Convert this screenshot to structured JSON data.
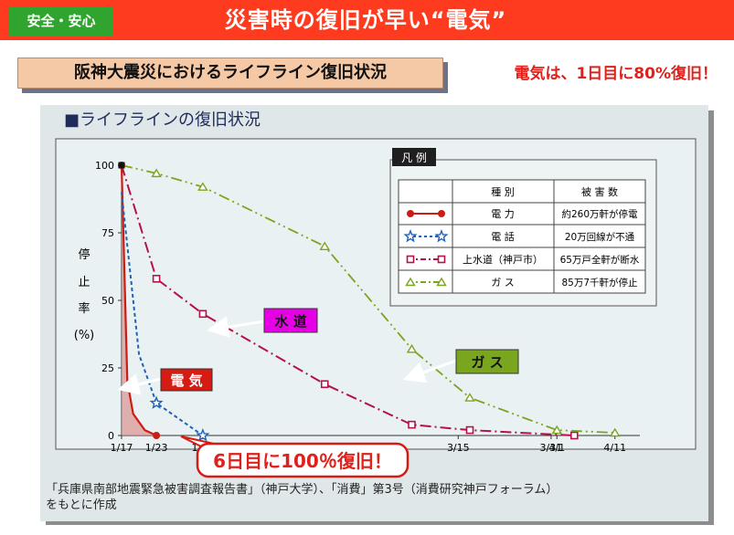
{
  "header": {
    "badge": "安全・安心",
    "title": "災害時の復旧が早い“電気”"
  },
  "subtitle": "阪神大震災におけるライフライン復旧状況",
  "highlight": "電気は、1日目に80%復旧！",
  "colors": {
    "header_bg": "#ff3b1f",
    "badge_bg": "#2fa52f",
    "electricity": "#cc1d14",
    "telephone": "#1f62b8",
    "water": "#b5124a",
    "gas": "#7aa51f"
  },
  "chart_data": {
    "type": "line",
    "title": "■ライフラインの復旧状況",
    "ylabel": [
      "停",
      "止",
      "率",
      "(%)"
    ],
    "ylim": [
      0,
      100
    ],
    "yticks": [
      0,
      25,
      50,
      75,
      100
    ],
    "xlabels": [
      "1/17",
      "1/23",
      "1/31",
      "3/15",
      "3/31",
      "4/1",
      "4/11"
    ],
    "legend": {
      "title": "凡 例",
      "headers": [
        "種 別",
        "被 害 数"
      ],
      "rows": [
        {
          "name": "電 力",
          "damage": "約260万軒が停電"
        },
        {
          "name": "電 話",
          "damage": "20万回線が不通"
        },
        {
          "name": "上水道（神戸市）",
          "damage": "65万戸全軒が断水"
        },
        {
          "name": "ガ ス",
          "damage": "85万7千軒が停止"
        }
      ]
    },
    "series": [
      {
        "name": "電 力",
        "points": [
          {
            "x": "1/17",
            "y": 100
          },
          {
            "x": "1/18",
            "y": 20
          },
          {
            "x": "1/19",
            "y": 8
          },
          {
            "x": "1/21",
            "y": 2
          },
          {
            "x": "1/23",
            "y": 0
          }
        ]
      },
      {
        "name": "電 話",
        "points": [
          {
            "x": "1/17",
            "y": 90
          },
          {
            "x": "1/20",
            "y": 30
          },
          {
            "x": "1/23",
            "y": 12
          },
          {
            "x": "1/31",
            "y": 0
          }
        ]
      },
      {
        "name": "上水道（神戸市）",
        "points": [
          {
            "x": "1/17",
            "y": 100
          },
          {
            "x": "1/23",
            "y": 58
          },
          {
            "x": "1/31",
            "y": 45
          },
          {
            "x": "2/21",
            "y": 19
          },
          {
            "x": "3/7",
            "y": 4
          },
          {
            "x": "3/17",
            "y": 2
          },
          {
            "x": "4/4",
            "y": 0
          }
        ]
      },
      {
        "name": "ガ ス",
        "points": [
          {
            "x": "1/17",
            "y": 100
          },
          {
            "x": "1/23",
            "y": 97
          },
          {
            "x": "1/31",
            "y": 92
          },
          {
            "x": "2/21",
            "y": 70
          },
          {
            "x": "3/7",
            "y": 32
          },
          {
            "x": "3/17",
            "y": 14
          },
          {
            "x": "4/1",
            "y": 2
          },
          {
            "x": "4/11",
            "y": 1
          }
        ]
      }
    ],
    "annotations": {
      "water": "水 道",
      "gas": "ガ ス",
      "electricity": "電 気",
      "callout": "6日目に100％復旧！"
    }
  },
  "caption": {
    "line1": "「兵庫県南部地震緊急被害調査報告書」（神戸大学）、「消費」第3号（消費研究神戸フォーラム）",
    "line2": "をもとに作成"
  }
}
